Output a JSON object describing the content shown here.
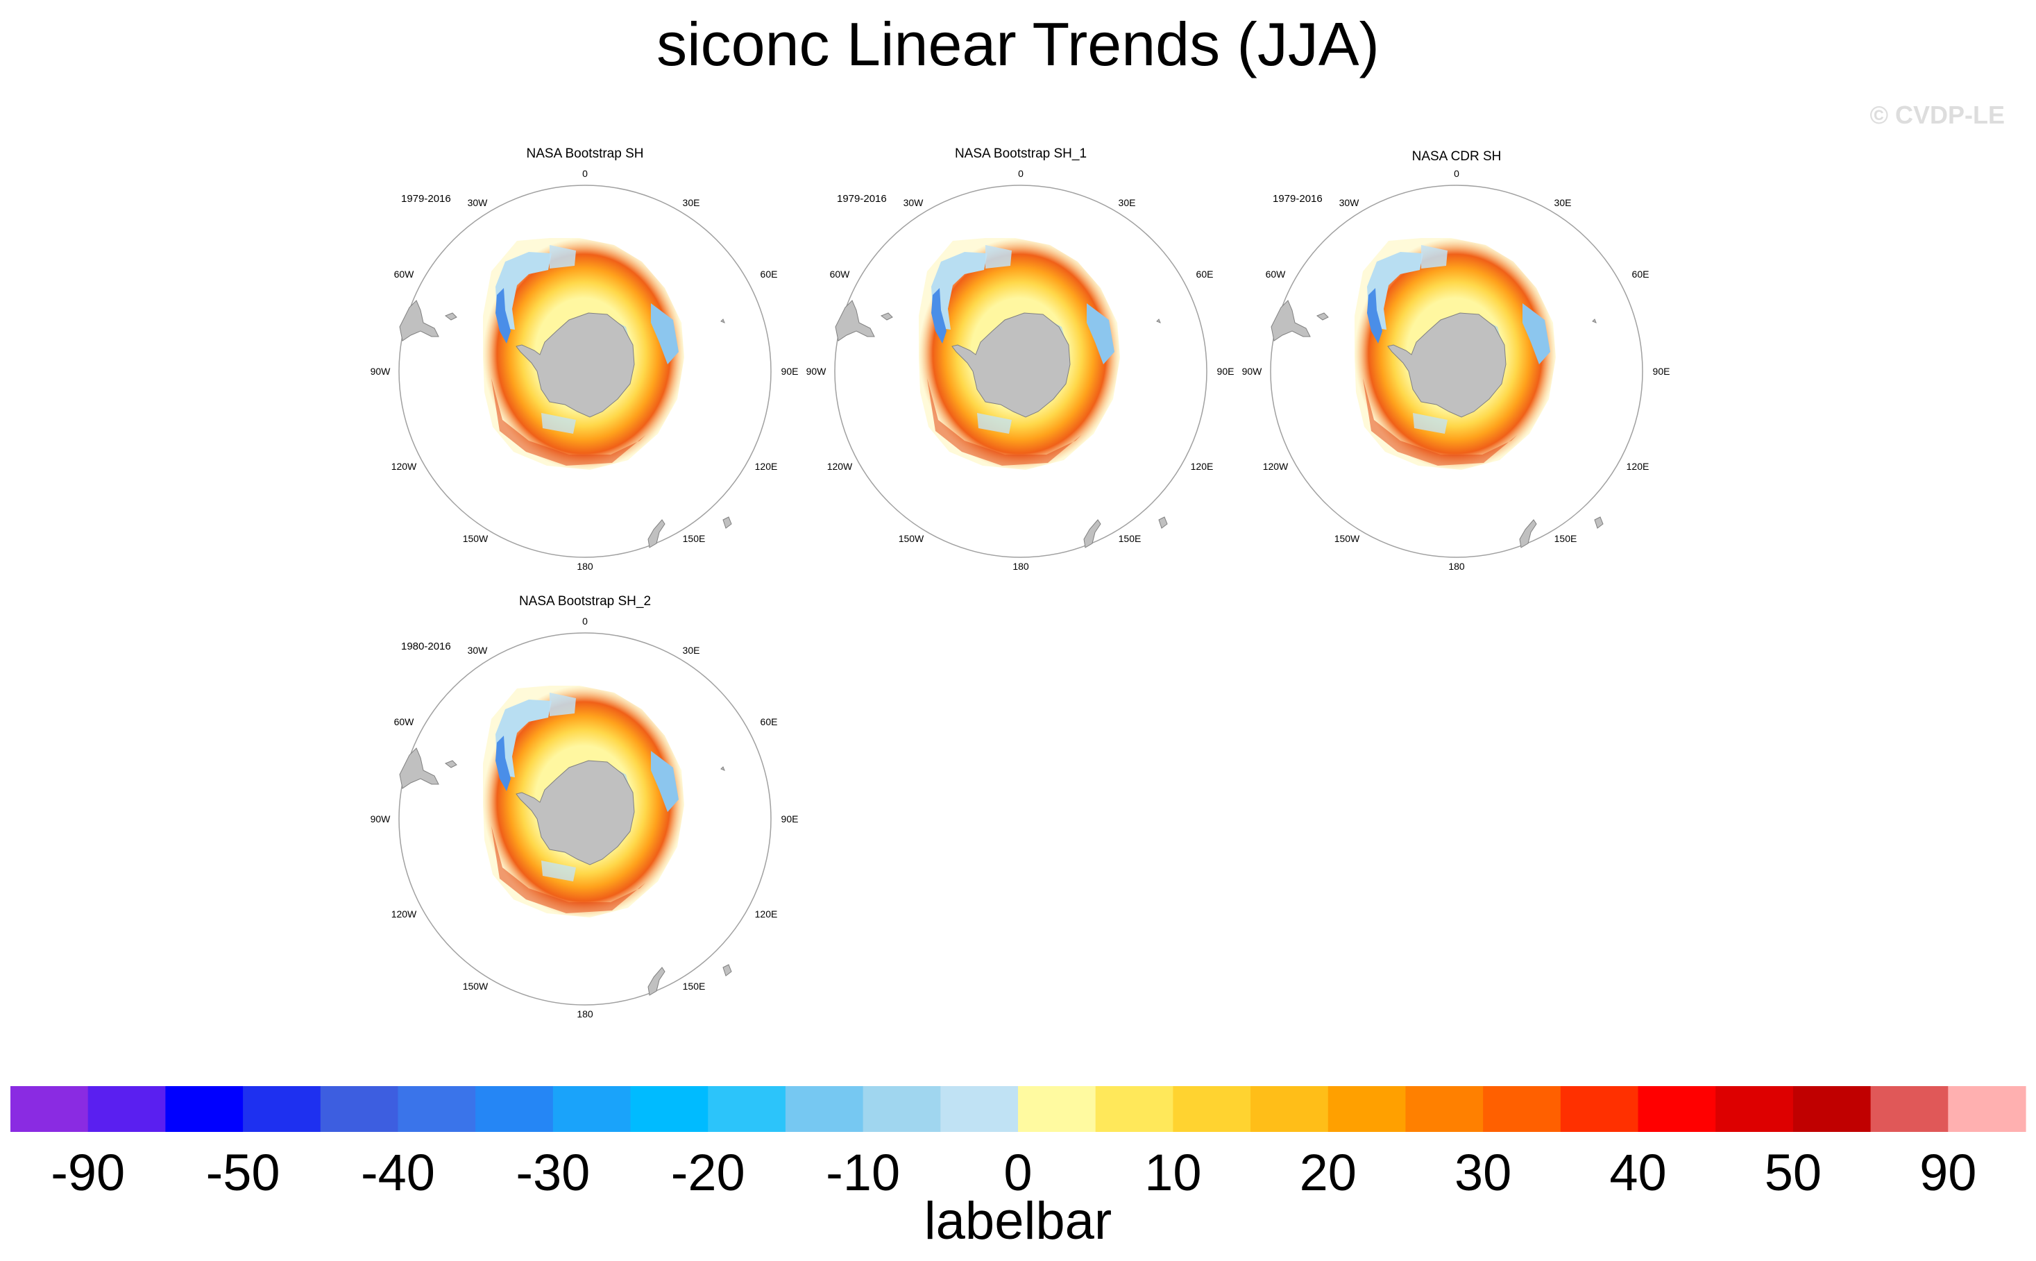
{
  "title": "siconc Linear Trends (JJA)",
  "watermark": "© CVDP-LE",
  "panels": [
    {
      "name": "NASA Bootstrap SH",
      "years": "1979-2016"
    },
    {
      "name": "NASA Bootstrap SH_1",
      "years": "1979-2016"
    },
    {
      "name": "NASA CDR SH",
      "years": "1979-2016"
    },
    {
      "name": "NASA Bootstrap SH_2",
      "years": "1980-2016"
    }
  ],
  "lon_labels": [
    "0",
    "30E",
    "60E",
    "90E",
    "120E",
    "150E",
    "180",
    "150W",
    "120W",
    "90W",
    "60W",
    "30W"
  ],
  "colors": {
    "land": "#c0c0c0",
    "land_edge": "#808080",
    "ring": "#a0a0a0"
  },
  "labelbar": {
    "title": "labelbar",
    "tick_labels": [
      "-90",
      "-50",
      "-40",
      "-30",
      "-20",
      "-10",
      "0",
      "10",
      "20",
      "30",
      "40",
      "50",
      "90"
    ],
    "box_colors": [
      "#8a2be2",
      "#5a1ff0",
      "#0000ff",
      "#1e30f0",
      "#3d5ee0",
      "#3a74ea",
      "#2586f5",
      "#1aa3fa",
      "#00bbff",
      "#2cc4fa",
      "#76c8f2",
      "#a0d6ef",
      "#c0e2f4",
      "#fffaa0",
      "#ffe85a",
      "#ffd330",
      "#ffbe18",
      "#ffa000",
      "#ff8000",
      "#ff6000",
      "#ff3000",
      "#ff0000",
      "#dd0000",
      "#c00000",
      "#e05858",
      "#ffb0b0"
    ]
  },
  "chart_data": {
    "type": "heatmap",
    "title": "siconc Linear Trends (JJA)",
    "projection": "south polar stereographic",
    "variable": "siconc",
    "season": "JJA",
    "panels": [
      "NASA Bootstrap SH",
      "NASA Bootstrap SH_1",
      "NASA CDR SH",
      "NASA Bootstrap SH_2"
    ],
    "colorbar_levels": [
      -90,
      -50,
      -40,
      -30,
      -20,
      -10,
      0,
      10,
      20,
      30,
      40,
      50,
      90
    ],
    "colorbar_label": "labelbar"
  }
}
